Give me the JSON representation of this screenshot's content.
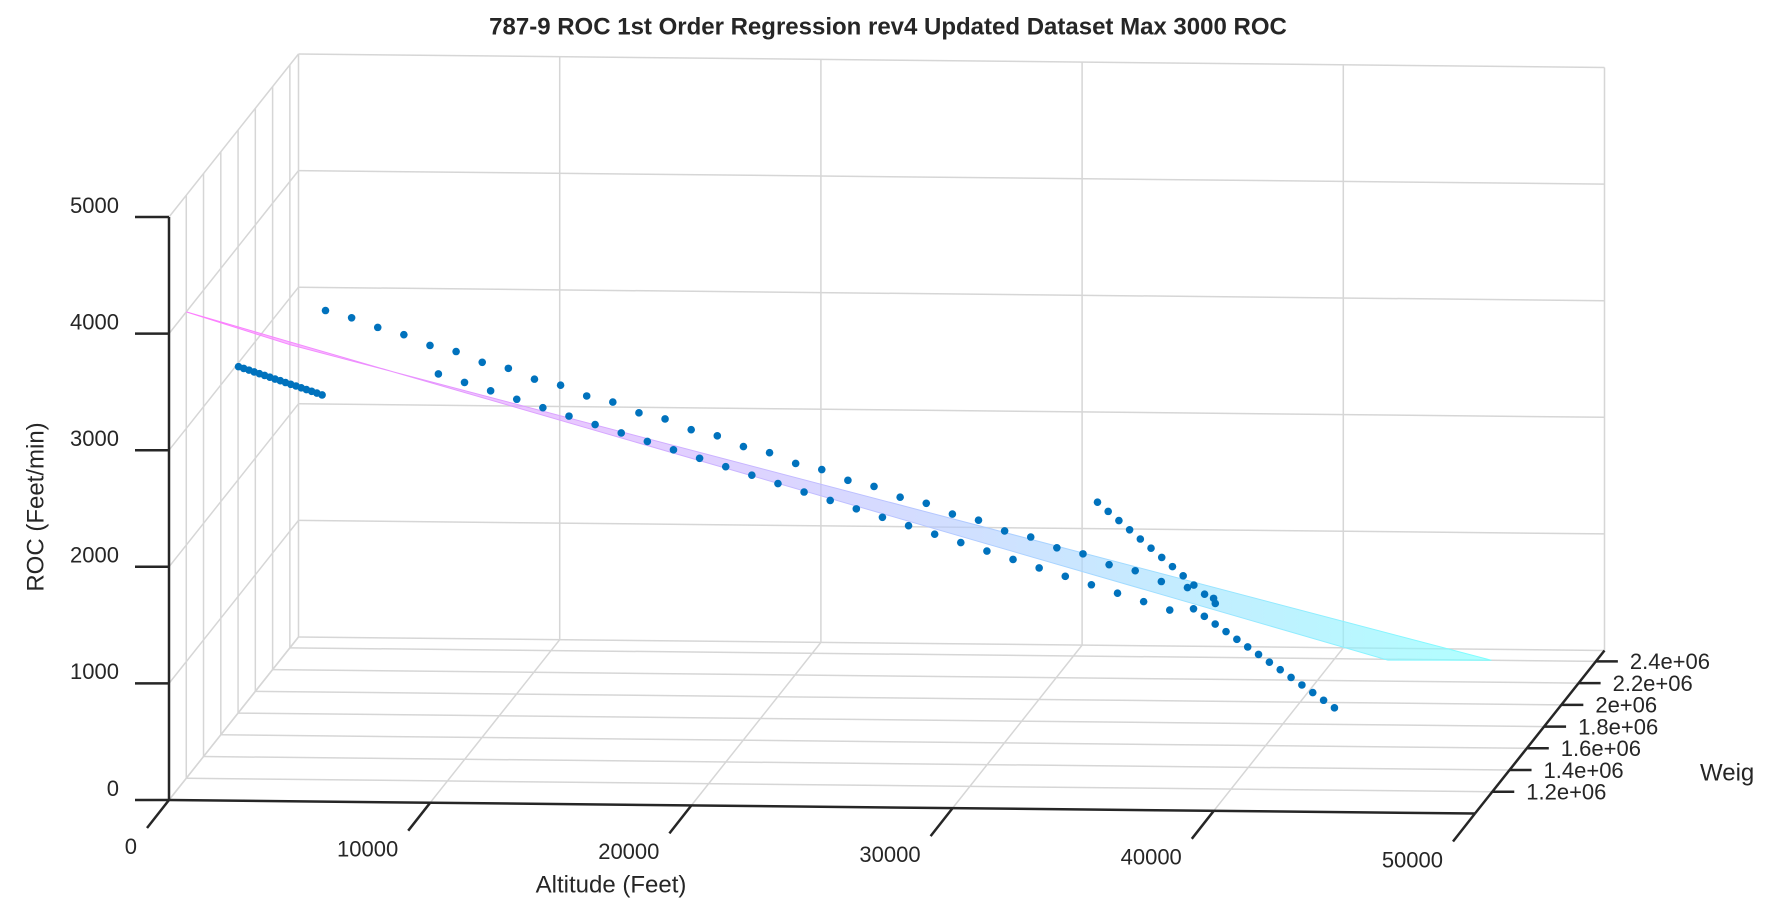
{
  "chart_data": {
    "type": "scatter3d",
    "title": "787-9 ROC 1st Order Regression rev4 Updated Dataset Max 3000 ROC",
    "xlabel": "Altitude (Feet)",
    "ylabel": "Weig",
    "zlabel": "ROC (Feet/min)",
    "xlim": [
      0,
      50000
    ],
    "xticks": [
      0,
      10000,
      20000,
      30000,
      40000,
      50000
    ],
    "ylim": [
      1000000,
      2500000
    ],
    "yticks": [
      {
        "value": 1200000,
        "label": "1.2e+06"
      },
      {
        "value": 1400000,
        "label": "1.4e+06"
      },
      {
        "value": 1600000,
        "label": "1.6e+06"
      },
      {
        "value": 1800000,
        "label": "1.8e+06"
      },
      {
        "value": 2000000,
        "label": "2e+06"
      },
      {
        "value": 2200000,
        "label": "2.2e+06"
      },
      {
        "value": 2400000,
        "label": "2.4e+06"
      }
    ],
    "zlim": [
      0,
      5000
    ],
    "zticks": [
      0,
      1000,
      2000,
      3000,
      4000,
      5000
    ],
    "grid": true,
    "surface": {
      "x": [
        0,
        46000
      ],
      "y": [
        1200000,
        2400000
      ],
      "z": [
        [
          4000,
          2600
        ],
        [
          1120,
          0
        ]
      ],
      "colormap": [
        "#ff7dff",
        "#7dffff"
      ]
    },
    "series": [
      {
        "color": "#0072bd",
        "x": [
          5000,
          6000,
          7000,
          8000,
          9000,
          10000,
          11000,
          12000,
          13000,
          14000,
          15000,
          16000,
          17000,
          18000,
          19000,
          20000,
          21000,
          22000,
          23000,
          24000,
          25000,
          26000,
          27000,
          28000,
          29000,
          30000,
          31000,
          32000,
          33000,
          34000,
          35000,
          36000,
          37000,
          38000,
          39000
        ],
        "y": [
          1300000,
          1300000,
          1300000,
          1300000,
          1300000,
          1300000,
          1300000,
          1300000,
          1300000,
          1300000,
          1300000,
          1300000,
          1300000,
          1300000,
          1300000,
          1300000,
          1300000,
          1300000,
          1300000,
          1300000,
          1300000,
          1300000,
          1300000,
          1300000,
          1300000,
          1300000,
          1300000,
          1300000,
          1300000,
          1300000,
          1300000,
          1300000,
          1300000,
          1300000,
          1300000
        ],
        "z": [
          3930,
          3870,
          3790,
          3730,
          3640,
          3590,
          3500,
          3450,
          3360,
          3310,
          3220,
          3170,
          3080,
          3030,
          2940,
          2890,
          2800,
          2750,
          2660,
          2610,
          2520,
          2470,
          2380,
          2330,
          2240,
          2190,
          2100,
          2050,
          1960,
          1910,
          1820,
          1770,
          1680,
          1630,
          1540
        ]
      },
      {
        "color": "#0072bd",
        "x": [
          8000,
          9000,
          10000,
          11000,
          12000,
          13000,
          14000,
          15000,
          16000,
          17000,
          18000,
          19000,
          20000,
          21000,
          22000,
          23000,
          24000,
          25000,
          26000,
          27000,
          28000,
          29000,
          30000,
          31000,
          32000,
          33000,
          34000,
          35000,
          36000
        ],
        "y": [
          1700000,
          1700000,
          1700000,
          1700000,
          1700000,
          1700000,
          1700000,
          1700000,
          1700000,
          1700000,
          1700000,
          1700000,
          1700000,
          1700000,
          1700000,
          1700000,
          1700000,
          1700000,
          1700000,
          1700000,
          1700000,
          1700000,
          1700000,
          1700000,
          1700000,
          1700000,
          1700000,
          1700000,
          1700000
        ],
        "z": [
          3020,
          2950,
          2880,
          2810,
          2740,
          2670,
          2600,
          2530,
          2460,
          2390,
          2320,
          2250,
          2180,
          2110,
          2040,
          1970,
          1900,
          1830,
          1760,
          1690,
          1620,
          1550,
          1480,
          1410,
          1340,
          1270,
          1200,
          1130,
          1060
        ]
      },
      {
        "color": "#0072bd",
        "x": [
          2000,
          2200,
          2400,
          2600,
          2800,
          3000,
          3200,
          3400,
          3600,
          3800,
          4000,
          4200,
          4400,
          4600,
          4800,
          5000,
          5200
        ],
        "y": [
          1200000,
          1200000,
          1200000,
          1200000,
          1200000,
          1200000,
          1200000,
          1200000,
          1200000,
          1200000,
          1200000,
          1200000,
          1200000,
          1200000,
          1200000,
          1200000,
          1200000
        ],
        "z": [
          3535,
          3520,
          3506,
          3491,
          3476,
          3462,
          3447,
          3432,
          3418,
          3403,
          3388,
          3374,
          3359,
          3344,
          3330,
          3315,
          3300
        ]
      },
      {
        "color": "#0072bd",
        "x": [
          31250,
          31660,
          32070,
          32480,
          32890,
          33300,
          33710,
          34120,
          34530,
          34940,
          35350,
          35760
        ],
        "y": [
          2300000,
          2300000,
          2300000,
          2300000,
          2300000,
          2300000,
          2300000,
          2300000,
          2300000,
          2300000,
          2300000,
          2300000
        ],
        "z": [
          1415,
          1337,
          1259,
          1181,
          1103,
          1025,
          947,
          869,
          791,
          713,
          635,
          557
        ]
      },
      {
        "color": "#0072bd",
        "x": [
          37240,
          37655,
          38070,
          38485,
          38900,
          39315,
          39730,
          40145,
          40560,
          40975,
          41390,
          41805,
          42220,
          42635
        ],
        "y": [
          1600000,
          1600000,
          1600000,
          1600000,
          1600000,
          1600000,
          1600000,
          1600000,
          1600000,
          1600000,
          1600000,
          1600000,
          1600000,
          1600000
        ],
        "z": [
          1167,
          1103,
          1038,
          974,
          909,
          845,
          781,
          716,
          652,
          587,
          523,
          459,
          394,
          330
        ]
      }
    ]
  }
}
